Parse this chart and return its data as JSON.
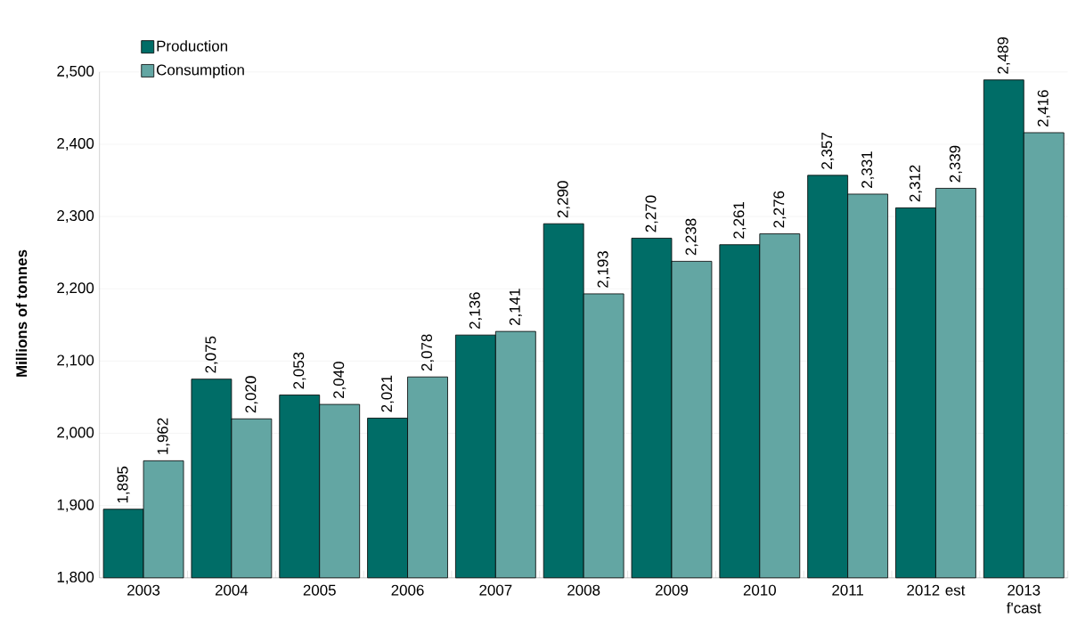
{
  "chart_data": {
    "type": "bar",
    "ylabel": "Millions of tonnes",
    "categories": [
      "2003",
      "2004",
      "2005",
      "2006",
      "2007",
      "2008",
      "2009",
      "2010",
      "2011",
      "2012 est",
      "2013 f'cast"
    ],
    "series": [
      {
        "name": "Production",
        "color": "#006d67",
        "values": [
          1895,
          2075,
          2053,
          2021,
          2136,
          2290,
          2270,
          2261,
          2357,
          2312,
          2489
        ],
        "value_labels": [
          "1,895",
          "2,075",
          "2,053",
          "2,021",
          "2,136",
          "2,290",
          "2,270",
          "2,261",
          "2,357",
          "2,312",
          "2,489"
        ]
      },
      {
        "name": "Consumption",
        "color": "#63a6a3",
        "values": [
          1962,
          2020,
          2040,
          2078,
          2141,
          2193,
          2238,
          2276,
          2331,
          2339,
          2416
        ],
        "value_labels": [
          "1,962",
          "2,020",
          "2,040",
          "2,078",
          "2,141",
          "2,193",
          "2,238",
          "2,276",
          "2,331",
          "2,339",
          "2,416"
        ]
      }
    ],
    "ylim": [
      1800,
      2500
    ],
    "yticks": [
      {
        "value": 1800,
        "label": "1,800"
      },
      {
        "value": 1900,
        "label": "1,900"
      },
      {
        "value": 2000,
        "label": "2,000"
      },
      {
        "value": 2100,
        "label": "2,100"
      },
      {
        "value": 2200,
        "label": "2,200"
      },
      {
        "value": 2300,
        "label": "2,300"
      },
      {
        "value": 2400,
        "label": "2,400"
      },
      {
        "value": 2500,
        "label": "2,500"
      }
    ],
    "grid": "y",
    "legend": "top left"
  }
}
